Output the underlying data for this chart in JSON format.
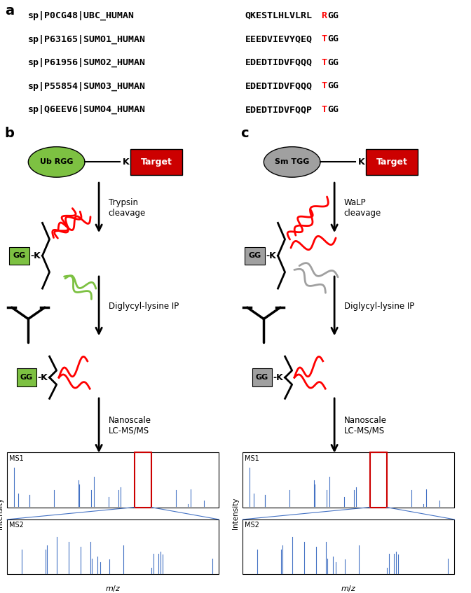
{
  "panel_a": {
    "sequences": [
      {
        "id": "sp|P0CG48|UBC_HUMAN",
        "seq_prefix": "QKESTLHLVLRL",
        "red_char": "R",
        "seq_suffix": "GG"
      },
      {
        "id": "sp|P63165|SUMO1_HUMAN",
        "seq_prefix": "EEEDVIEVYQEQ",
        "red_char": "T",
        "seq_suffix": "GG"
      },
      {
        "id": "sp|P61956|SUMO2_HUMAN",
        "seq_prefix": "EDEDTIDVFQQQ",
        "red_char": "T",
        "seq_suffix": "GG"
      },
      {
        "id": "sp|P55854|SUMO3_HUMAN",
        "seq_prefix": "EDEDTIDVFQQQ",
        "red_char": "T",
        "seq_suffix": "GG"
      },
      {
        "id": "sp|Q6EEV6|SUMO4_HUMAN",
        "seq_prefix": "EDEDTIDVFQQP",
        "red_char": "T",
        "seq_suffix": "GG"
      }
    ],
    "underline_positions": [
      "SUMO1",
      "SUMO2",
      "SUMO3",
      "SUMO4"
    ]
  },
  "colors": {
    "green_ellipse": "#7dc142",
    "gray_ellipse": "#a0a0a0",
    "red_box": "#cc0000",
    "green_box": "#7dc142",
    "gray_box": "#a0a0a0",
    "blue_spectrum": "#4472c4",
    "red_rect": "#cc0000",
    "black": "#000000",
    "white": "#ffffff"
  },
  "panel_b": {
    "label": "b",
    "cleavage_label": "Trypsin\ncleavage",
    "ip_label": "Diglycyl-lysine IP",
    "ms_label": "Nanoscale\nLC-MS/MS",
    "ub_label": "Ub RGG",
    "target_label": "Target",
    "gg_label": "GG",
    "k_label": "K",
    "color": "green"
  },
  "panel_c": {
    "label": "c",
    "cleavage_label": "WaLP\ncleavage",
    "ip_label": "Diglycyl-lysine IP",
    "ms_label": "Nanoscale\nLC-MS/MS",
    "sm_label": "Sm TGG",
    "target_label": "Target",
    "gg_label": "GG",
    "k_label": "K",
    "color": "gray"
  }
}
